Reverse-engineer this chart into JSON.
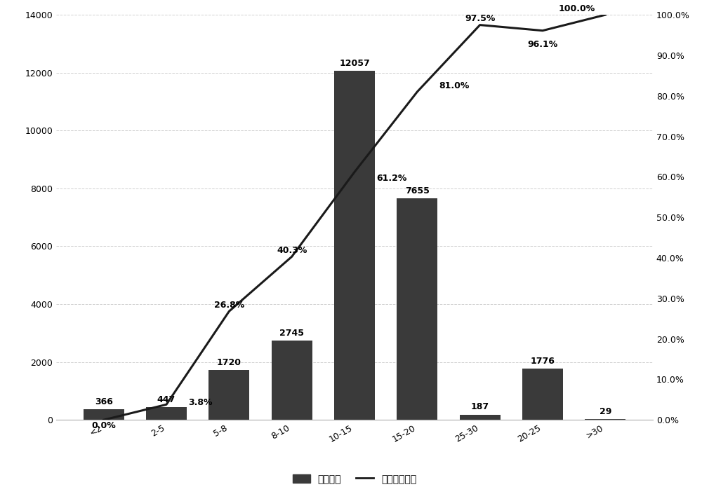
{
  "categories": [
    "<2",
    "2-5",
    "5-8",
    "8-10",
    "10-15",
    "15-20",
    "25-30",
    "20-25",
    ">30"
  ],
  "bar_values": [
    366,
    447,
    1720,
    2745,
    12057,
    7655,
    187,
    1776,
    29
  ],
  "bar_labels": [
    "366",
    "447",
    "1720",
    "2745",
    "12057",
    "7655",
    "187",
    "1776",
    "29"
  ],
  "line_values": [
    0.0,
    3.8,
    26.8,
    40.3,
    61.2,
    81.0,
    97.5,
    96.1,
    100.0
  ],
  "line_labels": [
    "0.0%",
    "3.8%",
    "26.8%",
    "40.3%",
    "61.2%",
    "81.0%",
    "97.5%",
    "96.1%",
    "100.0%"
  ],
  "bar_color": "#3a3a3a",
  "line_color": "#1a1a1a",
  "ylim_left": [
    0,
    14000
  ],
  "ylim_right": [
    0,
    100
  ],
  "yticks_left": [
    0,
    2000,
    4000,
    6000,
    8000,
    10000,
    12000,
    14000
  ],
  "yticks_right": [
    0.0,
    10.0,
    20.0,
    30.0,
    40.0,
    50.0,
    60.0,
    70.0,
    80.0,
    90.0,
    100.0
  ],
  "legend_bar": "欠费户次",
  "legend_line": "平均欠费比例",
  "background_color": "#ffffff",
  "grid_color": "#d0d0d0",
  "bar_label_fontsize": 9,
  "line_label_fontsize": 9,
  "tick_fontsize": 9,
  "legend_fontsize": 10,
  "bar_label_offsets": [
    100,
    100,
    100,
    100,
    100,
    100,
    100,
    100,
    100
  ],
  "line_label_dx": [
    0.0,
    0.35,
    0.0,
    0.0,
    0.35,
    0.35,
    0.0,
    0.0,
    -0.45
  ],
  "line_label_dy": [
    -1.5,
    0.5,
    1.5,
    1.5,
    -1.5,
    1.5,
    1.5,
    -3.5,
    1.5
  ],
  "line_label_ha": [
    "center",
    "left",
    "center",
    "center",
    "left",
    "left",
    "center",
    "center",
    "center"
  ]
}
